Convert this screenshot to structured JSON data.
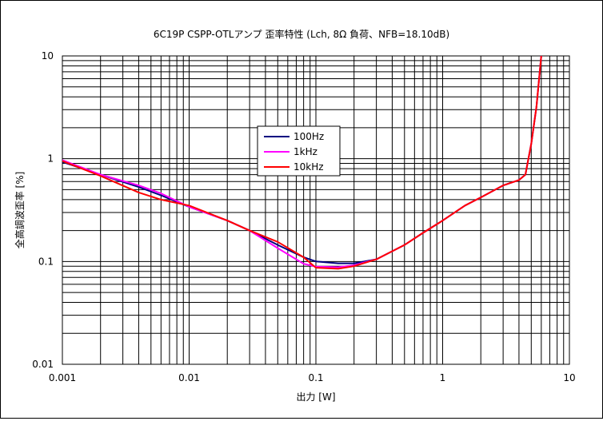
{
  "chart_data": {
    "type": "line",
    "title": "6C19P CSPP-OTLアンプ 歪率特性 (Lch, 8Ω 負荷、NFB=18.10dB)",
    "xlabel": "出力 [W]",
    "ylabel": "全高調波歪率 [%]",
    "x_scale": "log",
    "y_scale": "log",
    "xlim": [
      0.001,
      10
    ],
    "ylim": [
      0.01,
      10
    ],
    "grid": true,
    "legend_position": "center-left",
    "x_tick_labels": [
      "0.001",
      "0.01",
      "0.1",
      "1",
      "10"
    ],
    "y_tick_labels": [
      "0.01",
      "0.1",
      "1",
      "10"
    ],
    "series": [
      {
        "name": "100Hz",
        "color": "#000080",
        "x": [
          0.001,
          0.002,
          0.004,
          0.006,
          0.01,
          0.02,
          0.03,
          0.05,
          0.08,
          0.1,
          0.15,
          0.2,
          0.3,
          0.5,
          0.7,
          1,
          1.5,
          2,
          3,
          4,
          4.5,
          5,
          5.5,
          6
        ],
        "y": [
          0.93,
          0.7,
          0.53,
          0.44,
          0.34,
          0.25,
          0.2,
          0.145,
          0.11,
          0.1,
          0.096,
          0.096,
          0.105,
          0.145,
          0.19,
          0.25,
          0.35,
          0.42,
          0.55,
          0.62,
          0.7,
          1.4,
          3.2,
          10
        ]
      },
      {
        "name": "1kHz",
        "color": "#ff00ff",
        "x": [
          0.001,
          0.002,
          0.004,
          0.006,
          0.01,
          0.02,
          0.03,
          0.05,
          0.08,
          0.1,
          0.15,
          0.2,
          0.3,
          0.5,
          0.7,
          1,
          1.5,
          2,
          3,
          4,
          4.5,
          5,
          5.5,
          6
        ],
        "y": [
          0.97,
          0.7,
          0.55,
          0.46,
          0.34,
          0.25,
          0.2,
          0.135,
          0.095,
          0.089,
          0.088,
          0.092,
          0.105,
          0.145,
          0.19,
          0.25,
          0.35,
          0.42,
          0.55,
          0.62,
          0.7,
          1.4,
          3.2,
          10
        ]
      },
      {
        "name": "10kHz",
        "color": "#ff0000",
        "x": [
          0.001,
          0.002,
          0.004,
          0.006,
          0.01,
          0.02,
          0.03,
          0.05,
          0.08,
          0.1,
          0.15,
          0.2,
          0.3,
          0.5,
          0.7,
          1,
          1.5,
          2,
          3,
          4,
          4.5,
          5,
          5.5,
          6
        ],
        "y": [
          0.95,
          0.68,
          0.47,
          0.4,
          0.35,
          0.25,
          0.2,
          0.155,
          0.11,
          0.087,
          0.085,
          0.09,
          0.105,
          0.145,
          0.19,
          0.25,
          0.35,
          0.42,
          0.55,
          0.62,
          0.7,
          1.4,
          3.2,
          10
        ]
      }
    ]
  }
}
